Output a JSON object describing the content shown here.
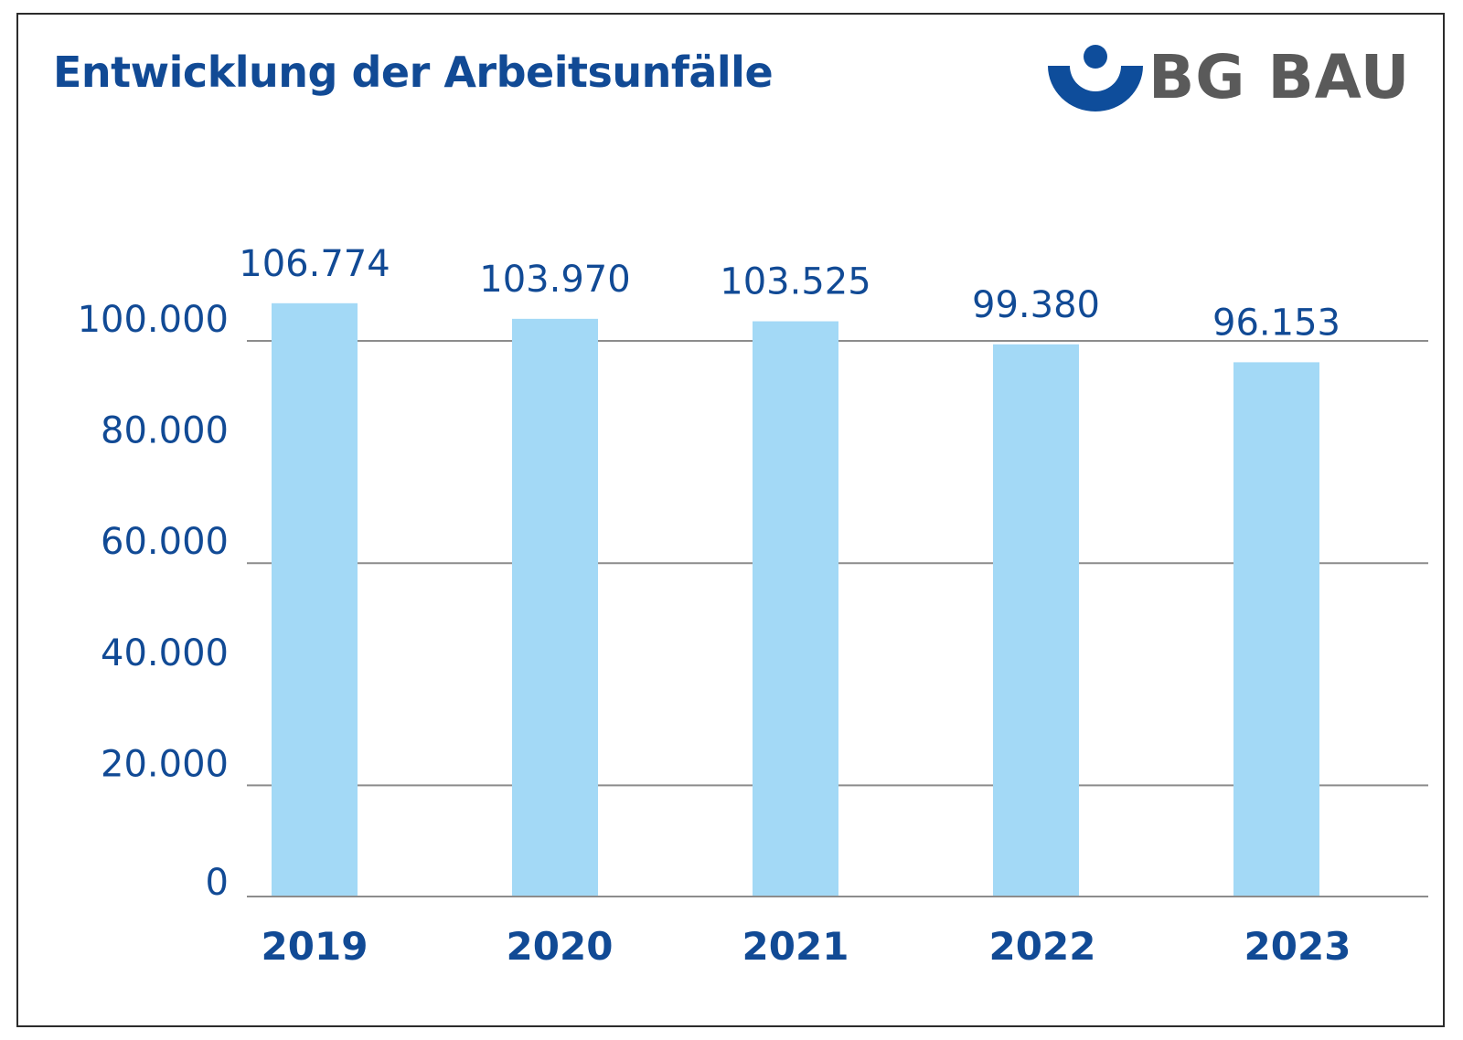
{
  "title": "Entwicklung der Arbeitsunfälle",
  "logo": {
    "text": "BG BAU"
  },
  "colors": {
    "title": "#114a95",
    "bar": "#a3d9f6",
    "axis_text": "#114a95",
    "grid": "#8c8c8c",
    "logo_blue": "#0e4d9b",
    "logo_gray": "#5a5a5a",
    "frame": "#2b2b2b"
  },
  "chart_data": {
    "type": "bar",
    "categories": [
      "2019",
      "2020",
      "2021",
      "2022",
      "2023"
    ],
    "values": [
      106774,
      103970,
      103525,
      99380,
      96153
    ],
    "value_labels": [
      "106.774",
      "103.970",
      "103.525",
      "99.380",
      "96.153"
    ],
    "yticks": [
      0,
      20000,
      40000,
      60000,
      80000,
      100000
    ],
    "ytick_labels": [
      "0",
      "20.000",
      "40.000",
      "60.000",
      "80.000",
      "100.000"
    ],
    "ylim": [
      0,
      100000
    ],
    "grid": true,
    "title": "Entwicklung der Arbeitsunfälle",
    "xlabel": "",
    "ylabel": ""
  }
}
